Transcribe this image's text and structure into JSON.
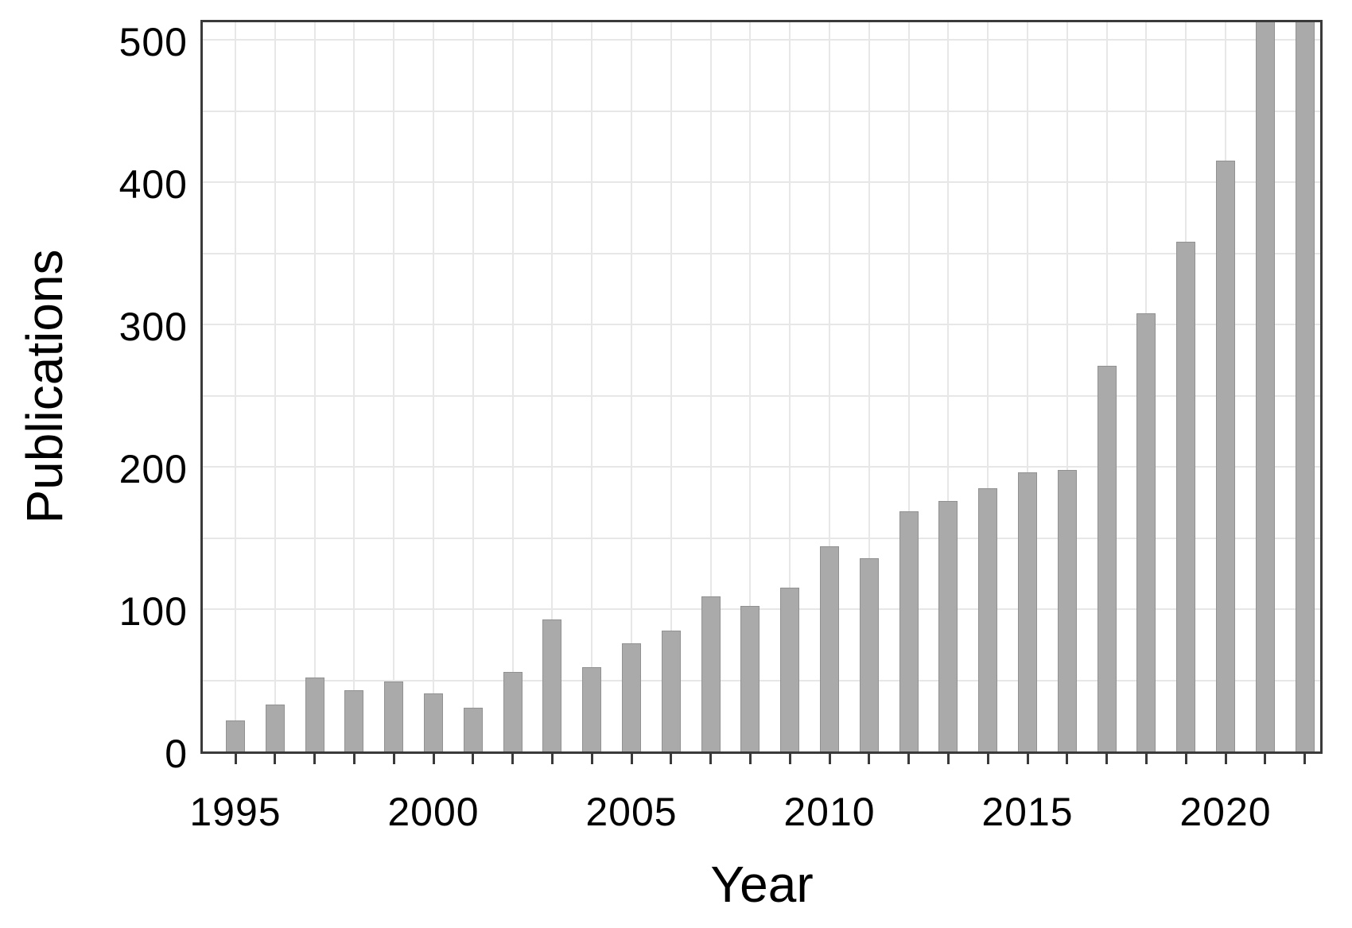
{
  "figure": {
    "background": "#ffffff"
  },
  "chart_data": {
    "type": "bar",
    "title": "",
    "xlabel": "Year",
    "ylabel": "Publications",
    "categories": [
      1995,
      1996,
      1997,
      1998,
      1999,
      2000,
      2001,
      2002,
      2003,
      2004,
      2005,
      2006,
      2007,
      2008,
      2009,
      2010,
      2011,
      2012,
      2013,
      2014,
      2015,
      2016,
      2017,
      2018,
      2019,
      2020,
      2021,
      2022
    ],
    "values": [
      22,
      33,
      52,
      43,
      49,
      41,
      31,
      56,
      93,
      59,
      76,
      85,
      109,
      102,
      115,
      144,
      136,
      169,
      176,
      185,
      196,
      198,
      271,
      308,
      358,
      415,
      550,
      550
    ],
    "x_tick_labels": [
      "1995",
      "2000",
      "2005",
      "2010",
      "2015",
      "2020"
    ],
    "x_tick_years": [
      1995,
      2000,
      2005,
      2010,
      2015,
      2020
    ],
    "y_tick_labels": [
      "0",
      "100",
      "200",
      "300",
      "400",
      "500"
    ],
    "y_ticks": [
      0,
      100,
      200,
      300,
      400,
      500
    ],
    "ylim": [
      0,
      516
    ],
    "y_minor_grid_step": 50,
    "grid": true,
    "legend_position": "none",
    "bar_color": "#aaaaaa",
    "bar_edge_color": "#919191",
    "grid_color": "#e7e7e7",
    "axis_color": "#3a3a3a",
    "text_color": "#000000",
    "clipped_bars": [
      2021,
      2022
    ],
    "note": "Bars for 2021 and 2022 extend past the top plot border; their values exceed the visible 0-500 axis range."
  }
}
